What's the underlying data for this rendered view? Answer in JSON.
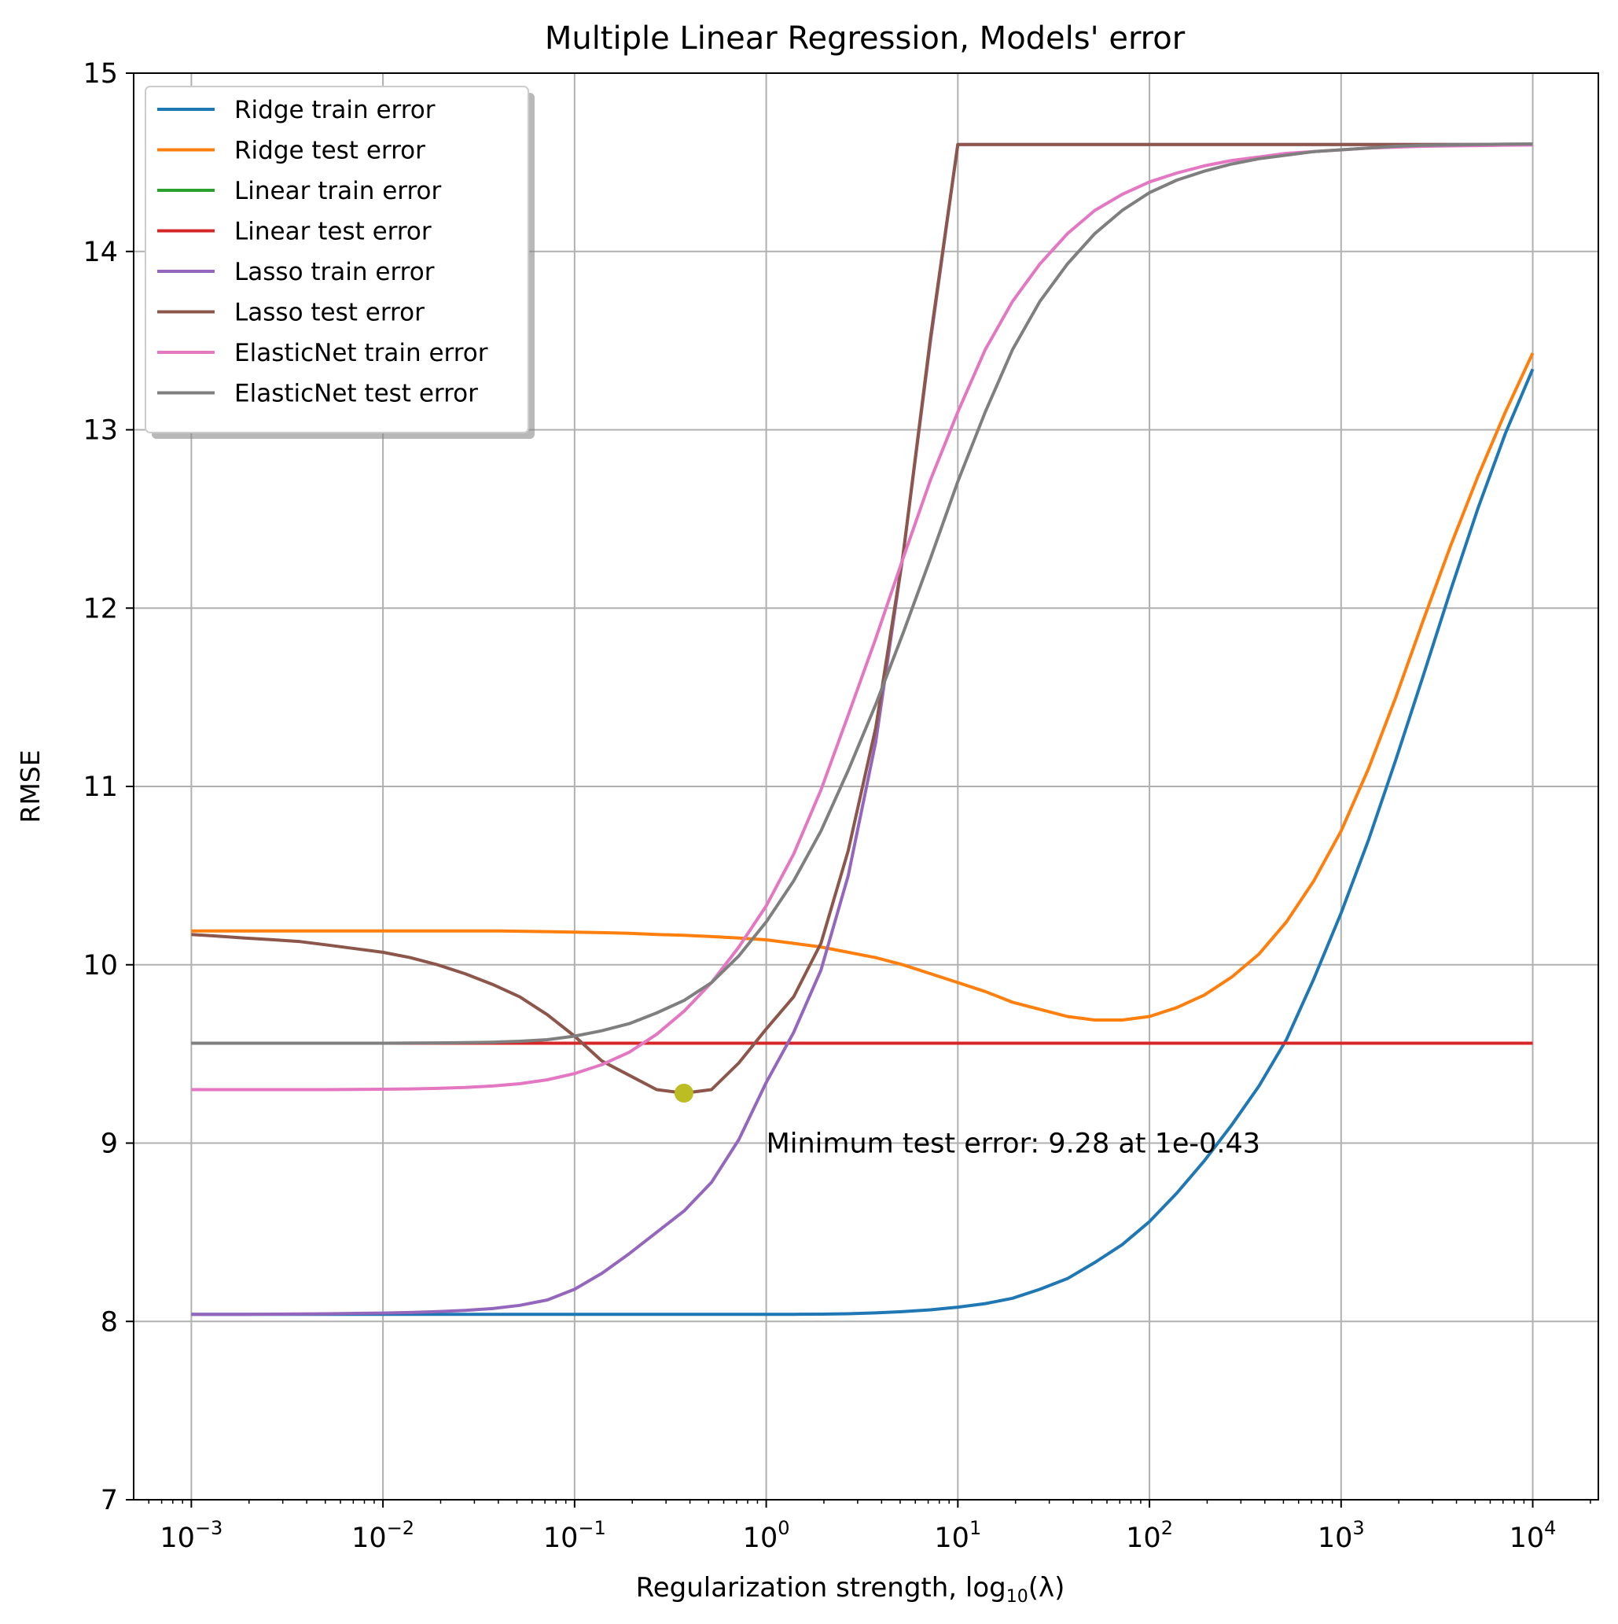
{
  "chart_data": {
    "type": "line",
    "title": "Multiple Linear Regression, Models' error",
    "xlabel_prefix": "Regularization strength, log",
    "xlabel_sub": "10",
    "xlabel_suffix": "(λ)",
    "ylabel": "RMSE",
    "x_scale": "log",
    "xlim": [
      0.0005,
      22000
    ],
    "ylim": [
      7,
      15
    ],
    "x_ticks": [
      {
        "value": 0.001,
        "base": "10",
        "exp": "−3"
      },
      {
        "value": 0.01,
        "base": "10",
        "exp": "−2"
      },
      {
        "value": 0.1,
        "base": "10",
        "exp": "−1"
      },
      {
        "value": 1,
        "base": "10",
        "exp": "0"
      },
      {
        "value": 10,
        "base": "10",
        "exp": "1"
      },
      {
        "value": 100,
        "base": "10",
        "exp": "2"
      },
      {
        "value": 1000,
        "base": "10",
        "exp": "3"
      },
      {
        "value": 10000,
        "base": "10",
        "exp": "4"
      }
    ],
    "y_ticks": [
      "7",
      "8",
      "9",
      "10",
      "11",
      "12",
      "13",
      "14",
      "15"
    ],
    "grid": true,
    "legend_position": "top-left",
    "x": [
      0.001,
      0.0014,
      0.0019,
      0.0027,
      0.0037,
      0.0052,
      0.0072,
      0.01,
      0.0139,
      0.0193,
      0.0268,
      0.0373,
      0.0518,
      0.072,
      0.1,
      0.139,
      0.193,
      0.268,
      0.373,
      0.518,
      0.72,
      1,
      1.39,
      1.93,
      2.68,
      3.73,
      5.18,
      7.2,
      10,
      13.9,
      19.3,
      26.8,
      37.3,
      51.8,
      72,
      100,
      139,
      193,
      268,
      373,
      518,
      720,
      1000,
      1390,
      1930,
      2680,
      3730,
      5180,
      7200,
      10000
    ],
    "series": [
      {
        "name": "Ridge train error",
        "color": "#1f77b4",
        "values": [
          8.04,
          8.04,
          8.04,
          8.04,
          8.04,
          8.04,
          8.04,
          8.04,
          8.04,
          8.04,
          8.04,
          8.04,
          8.04,
          8.04,
          8.04,
          8.04,
          8.04,
          8.04,
          8.04,
          8.04,
          8.04,
          8.04,
          8.04,
          8.041,
          8.043,
          8.048,
          8.055,
          8.065,
          8.08,
          8.1,
          8.13,
          8.18,
          8.24,
          8.33,
          8.43,
          8.56,
          8.72,
          8.9,
          9.1,
          9.32,
          9.58,
          9.92,
          10.29,
          10.7,
          11.15,
          11.62,
          12.1,
          12.56,
          12.98,
          13.34
        ]
      },
      {
        "name": "Ridge test error",
        "color": "#ff7f0e",
        "values": [
          10.19,
          10.19,
          10.19,
          10.19,
          10.19,
          10.19,
          10.19,
          10.19,
          10.19,
          10.19,
          10.19,
          10.19,
          10.188,
          10.186,
          10.183,
          10.18,
          10.176,
          10.17,
          10.165,
          10.158,
          10.15,
          10.14,
          10.12,
          10.1,
          10.07,
          10.04,
          10.0,
          9.95,
          9.9,
          9.85,
          9.79,
          9.75,
          9.71,
          9.69,
          9.69,
          9.71,
          9.76,
          9.83,
          9.93,
          10.06,
          10.24,
          10.47,
          10.75,
          11.1,
          11.5,
          11.93,
          12.35,
          12.74,
          13.1,
          13.43
        ]
      },
      {
        "name": "Linear train error",
        "color": "#2ca02c",
        "values": [
          9.56,
          9.56,
          9.56,
          9.56,
          9.56,
          9.56,
          9.56,
          9.56,
          9.56,
          9.56,
          9.56,
          9.56,
          9.56,
          9.56,
          9.56,
          9.56,
          9.56,
          9.56,
          9.56,
          9.56,
          9.56,
          9.56,
          9.56,
          9.56,
          9.56,
          9.56,
          9.56,
          9.56,
          9.56,
          9.56,
          9.56,
          9.56,
          9.56,
          9.56,
          9.56,
          9.56,
          9.56,
          9.56,
          9.56,
          9.56,
          9.56,
          9.56,
          9.56,
          9.56,
          9.56,
          9.56,
          9.56,
          9.56,
          9.56,
          9.56
        ]
      },
      {
        "name": "Linear test error",
        "color": "#d62728",
        "values": [
          9.56,
          9.56,
          9.56,
          9.56,
          9.56,
          9.56,
          9.56,
          9.56,
          9.56,
          9.56,
          9.56,
          9.56,
          9.56,
          9.56,
          9.56,
          9.56,
          9.56,
          9.56,
          9.56,
          9.56,
          9.56,
          9.56,
          9.56,
          9.56,
          9.56,
          9.56,
          9.56,
          9.56,
          9.56,
          9.56,
          9.56,
          9.56,
          9.56,
          9.56,
          9.56,
          9.56,
          9.56,
          9.56,
          9.56,
          9.56,
          9.56,
          9.56,
          9.56,
          9.56,
          9.56,
          9.56,
          9.56,
          9.56,
          9.56,
          9.56
        ]
      },
      {
        "name": "Lasso train error",
        "color": "#9467bd",
        "values": [
          8.04,
          8.04,
          8.04,
          8.041,
          8.042,
          8.043,
          8.045,
          8.047,
          8.05,
          8.055,
          8.062,
          8.072,
          8.09,
          8.12,
          8.18,
          8.27,
          8.38,
          8.5,
          8.62,
          8.78,
          9.02,
          9.34,
          9.62,
          9.97,
          10.5,
          11.25,
          12.3,
          13.5,
          14.6,
          14.6,
          14.6,
          14.6,
          14.6,
          14.6,
          14.6,
          14.6,
          14.6,
          14.6,
          14.6,
          14.6,
          14.6,
          14.6,
          14.6,
          14.6,
          14.6,
          14.6,
          14.6,
          14.6,
          14.6,
          14.6
        ]
      },
      {
        "name": "Lasso test error",
        "color": "#8c564b",
        "values": [
          10.17,
          10.16,
          10.15,
          10.14,
          10.13,
          10.11,
          10.09,
          10.07,
          10.04,
          10.0,
          9.95,
          9.89,
          9.82,
          9.72,
          9.6,
          9.46,
          9.38,
          9.3,
          9.28,
          9.3,
          9.45,
          9.64,
          9.82,
          10.12,
          10.64,
          11.33,
          12.3,
          13.52,
          14.6,
          14.6,
          14.6,
          14.6,
          14.6,
          14.6,
          14.6,
          14.6,
          14.6,
          14.6,
          14.6,
          14.6,
          14.6,
          14.6,
          14.6,
          14.6,
          14.6,
          14.6,
          14.6,
          14.6,
          14.6,
          14.6
        ]
      },
      {
        "name": "ElasticNet train error",
        "color": "#e377c2",
        "values": [
          9.3,
          9.3,
          9.3,
          9.3,
          9.3,
          9.3,
          9.301,
          9.302,
          9.304,
          9.307,
          9.312,
          9.32,
          9.333,
          9.355,
          9.39,
          9.44,
          9.51,
          9.61,
          9.74,
          9.9,
          10.1,
          10.33,
          10.62,
          10.98,
          11.4,
          11.83,
          12.28,
          12.72,
          13.1,
          13.45,
          13.72,
          13.93,
          14.1,
          14.23,
          14.32,
          14.39,
          14.44,
          14.48,
          14.51,
          14.53,
          14.55,
          14.56,
          14.57,
          14.58,
          14.585,
          14.59,
          14.592,
          14.594,
          14.596,
          14.597
        ]
      },
      {
        "name": "ElasticNet test error",
        "color": "#7f7f7f",
        "values": [
          9.56,
          9.56,
          9.56,
          9.56,
          9.56,
          9.56,
          9.56,
          9.56,
          9.561,
          9.562,
          9.563,
          9.566,
          9.571,
          9.58,
          9.6,
          9.63,
          9.67,
          9.73,
          9.8,
          9.9,
          10.05,
          10.24,
          10.47,
          10.75,
          11.09,
          11.46,
          11.86,
          12.28,
          12.71,
          13.1,
          13.45,
          13.72,
          13.93,
          14.1,
          14.23,
          14.33,
          14.4,
          14.45,
          14.49,
          14.52,
          14.54,
          14.56,
          14.57,
          14.58,
          14.59,
          14.595,
          14.598,
          14.6,
          14.602,
          14.603
        ]
      }
    ],
    "marker": {
      "x": 0.372,
      "y": 9.28,
      "color": "#bcbd22"
    },
    "annotation": {
      "text": "Minimum test error: 9.28 at 1e-0.43",
      "x": 1.0,
      "y": 9.0
    }
  }
}
